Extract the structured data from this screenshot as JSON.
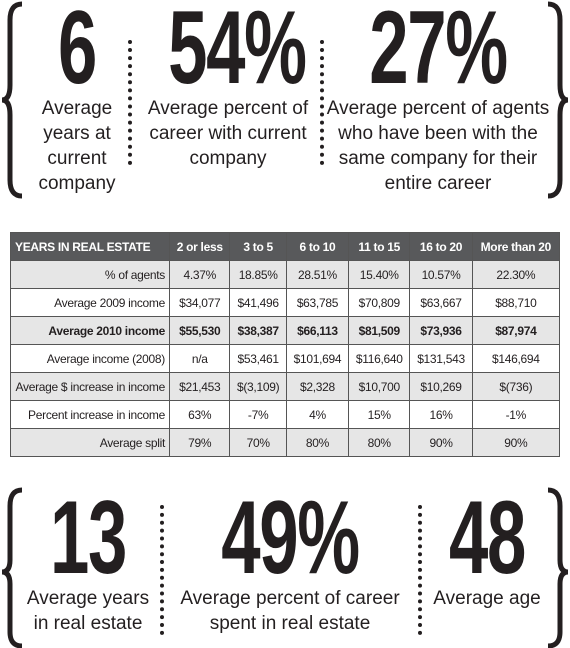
{
  "top_stats": [
    {
      "number": "6",
      "label": "Average years at current company"
    },
    {
      "number": "54%",
      "label": "Average percent of career with current company"
    },
    {
      "number": "27%",
      "label": "Average percent of agents who have been with the same company for their entire career"
    }
  ],
  "table": {
    "header": [
      "YEARS IN REAL ESTATE",
      "2 or less",
      "3 to 5",
      "6 to 10",
      "11 to 15",
      "16 to 20",
      "More than 20"
    ],
    "rows": [
      [
        "% of agents",
        "4.37%",
        "18.85%",
        "28.51%",
        "15.40%",
        "10.57%",
        "22.30%"
      ],
      [
        "Average 2009 income",
        "$34,077",
        "$41,496",
        "$63,785",
        "$70,809",
        "$63,667",
        "$88,710"
      ],
      [
        "Average 2010 income",
        "$55,530",
        "$38,387",
        "$66,113",
        "$81,509",
        "$73,936",
        "$87,974"
      ],
      [
        "Average income (2008)",
        "n/a",
        "$53,461",
        "$101,694",
        "$116,640",
        "$131,543",
        "$146,694"
      ],
      [
        "Average $ increase in income",
        "$21,453",
        "$(3,109)",
        "$2,328",
        "$10,700",
        "$10,269",
        "$(736)"
      ],
      [
        "Percent increase in income",
        "63%",
        "-7%",
        "4%",
        "15%",
        "16%",
        "-1%"
      ],
      [
        "Average split",
        "79%",
        "70%",
        "80%",
        "80%",
        "90%",
        "90%"
      ]
    ],
    "bold_row": 2
  },
  "bottom_stats": [
    {
      "number": "13",
      "label": "Average years in real estate"
    },
    {
      "number": "49%",
      "label": "Average percent of career spent in real estate"
    },
    {
      "number": "48",
      "label": "Average age"
    }
  ]
}
